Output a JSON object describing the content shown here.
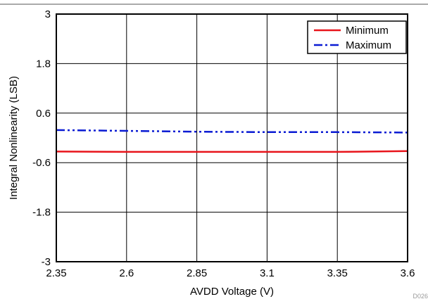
{
  "chart_data": {
    "type": "line",
    "title": "",
    "xlabel": "AVDD Voltage (V)",
    "ylabel": "Integral Nonlinearity (LSB)",
    "xlim": [
      2.35,
      3.6
    ],
    "ylim": [
      -3,
      3
    ],
    "x_ticks": [
      "2.35",
      "2.6",
      "2.85",
      "3.1",
      "3.35",
      "3.6"
    ],
    "y_ticks": [
      "3",
      "1.8",
      "0.6",
      "-0.6",
      "-1.8",
      "-3"
    ],
    "grid": true,
    "legend_position": "top-right",
    "series": [
      {
        "name": "Minimum",
        "color": "#e8141b",
        "line_style": "solid",
        "x": [
          2.35,
          2.6,
          2.85,
          3.1,
          3.35,
          3.6
        ],
        "y": [
          -0.33,
          -0.34,
          -0.34,
          -0.34,
          -0.34,
          -0.32
        ]
      },
      {
        "name": "Maximum",
        "color": "#0a1bd3",
        "line_style": "dash-dot-dot",
        "x": [
          2.35,
          2.6,
          2.85,
          3.1,
          3.35,
          3.6
        ],
        "y": [
          0.19,
          0.17,
          0.15,
          0.14,
          0.14,
          0.13
        ]
      }
    ],
    "corner_code": "D026"
  }
}
